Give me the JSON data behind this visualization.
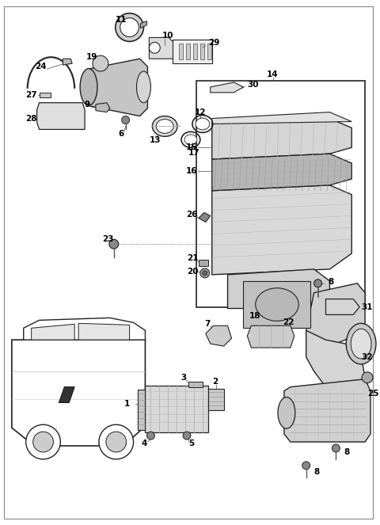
{
  "bg_color": "#ffffff",
  "fig_width": 4.8,
  "fig_height": 6.63,
  "dpi": 100,
  "lc": "#222222",
  "fc_light": "#e8e8e8",
  "fc_mid": "#c8c8c8",
  "fc_dark": "#a0a0a0",
  "fs": 7.5,
  "fs_bold": 8.0
}
